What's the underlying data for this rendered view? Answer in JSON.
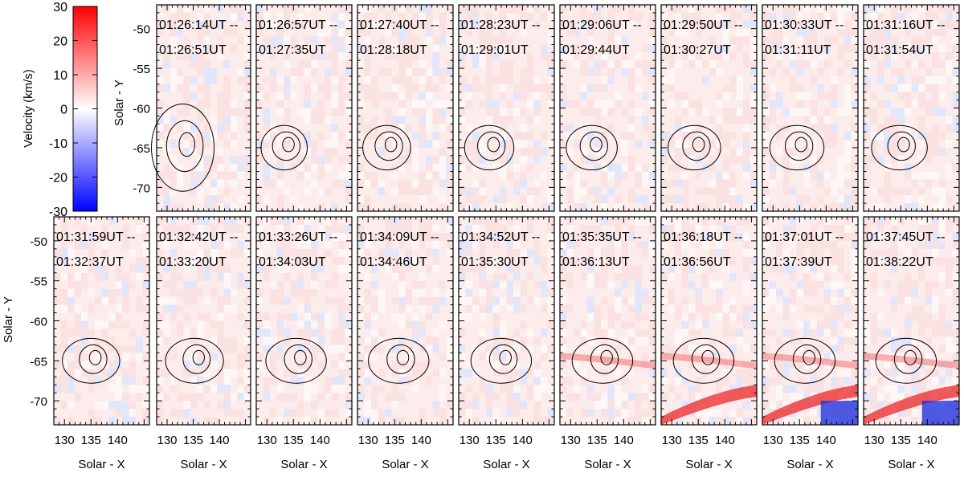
{
  "colorbar": {
    "label": "Velocity (km/s)",
    "range": [
      -30,
      30
    ],
    "ticks": [
      "30",
      "20",
      "10",
      "0",
      "-10",
      "-20",
      "-30"
    ],
    "colors": {
      "negative": "#0000ff",
      "zero": "#ffffff",
      "positive": "#ff0000"
    }
  },
  "axes": {
    "xlabel": "Solar - X",
    "ylabel": "Solar - Y",
    "xlim": [
      128,
      146
    ],
    "ylim": [
      -73,
      -47
    ],
    "xticks": [
      "130",
      "135",
      "140"
    ],
    "yticks": [
      "-50",
      "-55",
      "-60",
      "-65",
      "-70"
    ]
  },
  "panels": [
    {
      "t1": "01:26:14UT --",
      "t2": "01:26:51UT"
    },
    {
      "t1": "01:26:57UT --",
      "t2": "01:27:35UT"
    },
    {
      "t1": "01:27:40UT --",
      "t2": "01:28:18UT"
    },
    {
      "t1": "01:28:23UT --",
      "t2": "01:29:01UT"
    },
    {
      "t1": "01:29:06UT --",
      "t2": "01:29:44UT"
    },
    {
      "t1": "01:29:50UT --",
      "t2": "01:30:27UT"
    },
    {
      "t1": "01:30:33UT --",
      "t2": "01:31:11UT"
    },
    {
      "t1": "01:31:16UT --",
      "t2": "01:31:54UT"
    },
    {
      "t1": "01:31:59UT --",
      "t2": "01:32:37UT"
    },
    {
      "t1": "01:32:42UT --",
      "t2": "01:33:20UT"
    },
    {
      "t1": "01:33:26UT --",
      "t2": "01:34:03UT"
    },
    {
      "t1": "01:34:09UT --",
      "t2": "01:34:46UT"
    },
    {
      "t1": "01:34:52UT --",
      "t2": "01:35:30UT"
    },
    {
      "t1": "01:35:35UT --",
      "t2": "01:36:13UT"
    },
    {
      "t1": "01:36:18UT --",
      "t2": "01:36:56UT"
    },
    {
      "t1": "01:37:01UT --",
      "t2": "01:37:39UT"
    },
    {
      "t1": "01:37:45UT --",
      "t2": "01:38:22UT"
    }
  ]
}
